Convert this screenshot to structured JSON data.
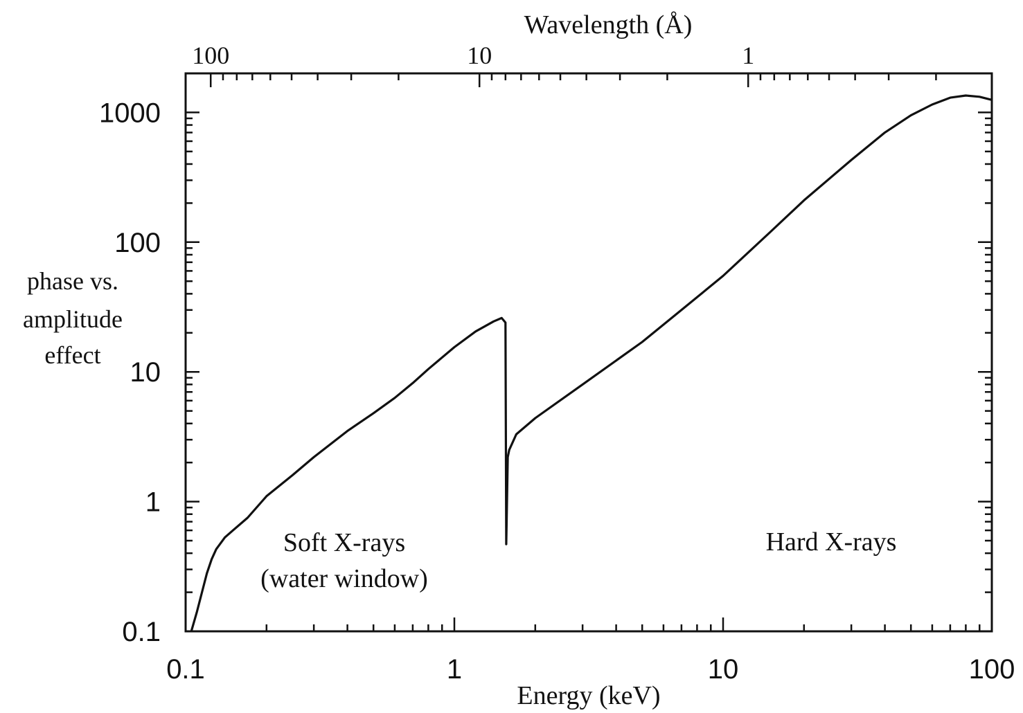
{
  "chart_data": {
    "type": "line",
    "title": "",
    "xlabel": "Energy (keV)",
    "x2label": "Wavelength (Å)",
    "ylabel_lines": [
      "phase vs.",
      "amplitude",
      "effect"
    ],
    "xscale": "log",
    "yscale": "log",
    "xlim": [
      0.1,
      100
    ],
    "ylim": [
      0.1,
      2000
    ],
    "grid": false,
    "x_ticks": [
      {
        "value": 0.1,
        "label": "0.1"
      },
      {
        "value": 1,
        "label": "1"
      },
      {
        "value": 10,
        "label": "10"
      },
      {
        "value": 100,
        "label": "100"
      }
    ],
    "y_ticks": [
      {
        "value": 0.1,
        "label": "0.1"
      },
      {
        "value": 1,
        "label": "1"
      },
      {
        "value": 10,
        "label": "10"
      },
      {
        "value": 100,
        "label": "100"
      },
      {
        "value": 1000,
        "label": "1000"
      }
    ],
    "x2_ticks": [
      {
        "value": 100,
        "label": "100"
      },
      {
        "value": 10,
        "label": "10"
      },
      {
        "value": 1,
        "label": "1"
      }
    ],
    "annotations": {
      "soft_line1": "Soft X-rays",
      "soft_line2": "(water window)",
      "hard": "Hard X-rays"
    },
    "series": [
      {
        "x": [
          0.105,
          0.11,
          0.115,
          0.12,
          0.125,
          0.13,
          0.14,
          0.15,
          0.17,
          0.2,
          0.25,
          0.3,
          0.4,
          0.5,
          0.6,
          0.7,
          0.8,
          1.0,
          1.2,
          1.4,
          1.5,
          1.55,
          1.56,
          1.58,
          1.6,
          1.7,
          2.0,
          3.0,
          5.0,
          7.0,
          10.0,
          15.0,
          20.0,
          30.0,
          40.0,
          50.0,
          60.0,
          70.0,
          80.0,
          90.0,
          100.0
        ],
        "y": [
          0.1,
          0.14,
          0.2,
          0.28,
          0.36,
          0.43,
          0.53,
          0.6,
          0.75,
          1.1,
          1.6,
          2.2,
          3.5,
          4.8,
          6.3,
          8.2,
          10.5,
          15.5,
          20.5,
          24.5,
          26.0,
          24.0,
          0.47,
          2.2,
          2.5,
          3.3,
          4.4,
          8.0,
          17.0,
          30.0,
          55.0,
          120.0,
          210.0,
          430.0,
          700.0,
          950.0,
          1150.0,
          1300.0,
          1350.0,
          1320.0,
          1250.0
        ]
      }
    ]
  }
}
